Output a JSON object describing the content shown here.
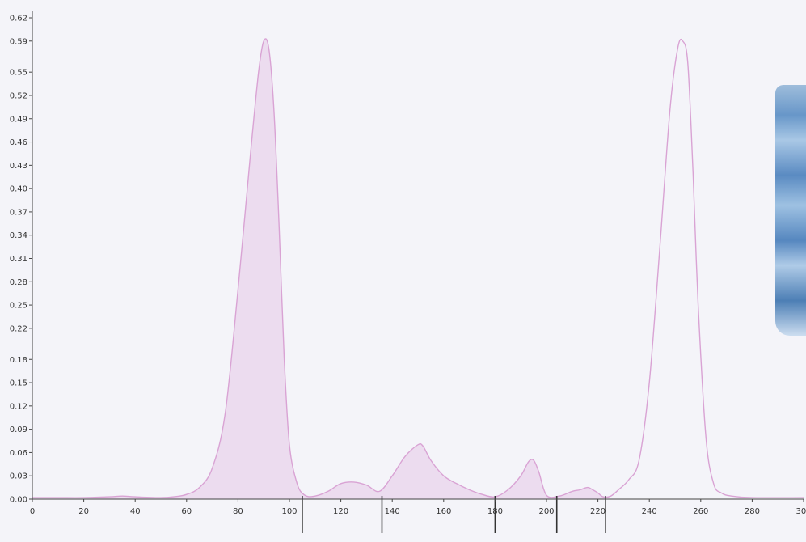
{
  "chart_data": {
    "type": "area",
    "title": "",
    "xlabel": "",
    "ylabel": "",
    "xlim": [
      0,
      300
    ],
    "ylim": [
      0,
      0.62
    ],
    "x_ticks": [
      "0",
      "20",
      "40",
      "60",
      "80",
      "100",
      "120",
      "140",
      "160",
      "180",
      "200",
      "220",
      "240",
      "260",
      "280",
      "300"
    ],
    "y_ticks": [
      "0.00",
      "0.03",
      "0.06",
      "0.09",
      "0.12",
      "0.15",
      "0.18",
      "0.22",
      "0.25",
      "0.28",
      "0.31",
      "0.34",
      "0.37",
      "0.40",
      "0.43",
      "0.46",
      "0.49",
      "0.52",
      "0.55",
      "0.59",
      "0.62"
    ],
    "series": [
      {
        "x": [
          0,
          10,
          20,
          30,
          35,
          40,
          50,
          55,
          60,
          65,
          70,
          75,
          80,
          85,
          88,
          90,
          92,
          94,
          96,
          98,
          100,
          103,
          106,
          110,
          115,
          120,
          125,
          130,
          135,
          140,
          145,
          150,
          152,
          155,
          160,
          165,
          170,
          175,
          180,
          185,
          190,
          193,
          195,
          197,
          200,
          205,
          210,
          213,
          216,
          218,
          220,
          222,
          225,
          228,
          232,
          236,
          240,
          244,
          248,
          251,
          253,
          255,
          257,
          259,
          262,
          265,
          268,
          272,
          280,
          300
        ],
        "y": [
          0.002,
          0.002,
          0.002,
          0.003,
          0.004,
          0.003,
          0.002,
          0.003,
          0.006,
          0.015,
          0.04,
          0.11,
          0.27,
          0.45,
          0.55,
          0.59,
          0.58,
          0.5,
          0.35,
          0.18,
          0.07,
          0.02,
          0.005,
          0.004,
          0.01,
          0.02,
          0.022,
          0.018,
          0.01,
          0.03,
          0.055,
          0.07,
          0.068,
          0.05,
          0.03,
          0.02,
          0.012,
          0.006,
          0.003,
          0.012,
          0.03,
          0.048,
          0.05,
          0.035,
          0.005,
          0.004,
          0.01,
          0.012,
          0.015,
          0.012,
          0.008,
          0.003,
          0.004,
          0.012,
          0.025,
          0.05,
          0.15,
          0.32,
          0.5,
          0.58,
          0.59,
          0.56,
          0.42,
          0.25,
          0.08,
          0.02,
          0.008,
          0.004,
          0.002,
          0.002
        ]
      }
    ],
    "boundaries": [
      105,
      136,
      180,
      204,
      223
    ],
    "grid": false,
    "legend": "none"
  },
  "colors": {
    "line": "#d9a3d4",
    "fill": "#ecdcef",
    "axis": "#444444",
    "background": "#f4f4f9"
  }
}
